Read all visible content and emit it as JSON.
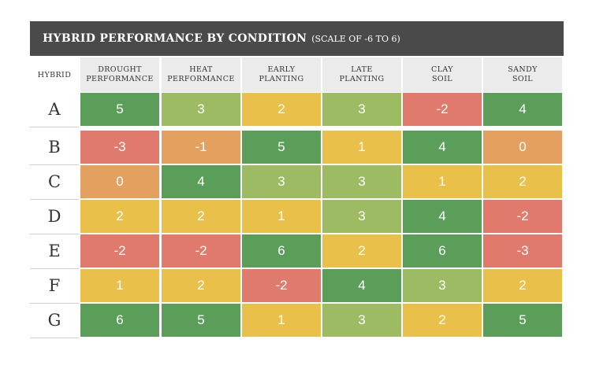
{
  "title": {
    "main": "HYBRID PERFORMANCE BY CONDITION",
    "sub": "(SCALE OF -6 TO 6)"
  },
  "chart_data": {
    "type": "heatmap",
    "title": "HYBRID PERFORMANCE BY CONDITION (SCALE OF -6 TO 6)",
    "row_header": "HYBRID",
    "columns": [
      "DROUGHT\nPERFORMANCE",
      "HEAT\nPERFORMANCE",
      "EARLY\nPLANTING",
      "LATE\nPLANTING",
      "CLAY\nSOIL",
      "SANDY\nSOIL"
    ],
    "rows": [
      "A",
      "B",
      "C",
      "D",
      "E",
      "F",
      "G"
    ],
    "values": [
      [
        5,
        3,
        2,
        3,
        -2,
        4
      ],
      [
        -3,
        -1,
        5,
        1,
        4,
        0
      ],
      [
        0,
        4,
        3,
        3,
        1,
        2
      ],
      [
        2,
        2,
        1,
        3,
        4,
        -2
      ],
      [
        -2,
        -2,
        6,
        2,
        6,
        -3
      ],
      [
        1,
        2,
        -2,
        4,
        3,
        2
      ],
      [
        6,
        5,
        1,
        3,
        2,
        5
      ]
    ],
    "scale": [
      -6,
      6
    ],
    "colors": {
      "high": "#5a9e5a",
      "mid_high": "#9cbb63",
      "mid": "#e9c04a",
      "low_mid": "#e3a05f",
      "low": "#e07a6c"
    }
  }
}
